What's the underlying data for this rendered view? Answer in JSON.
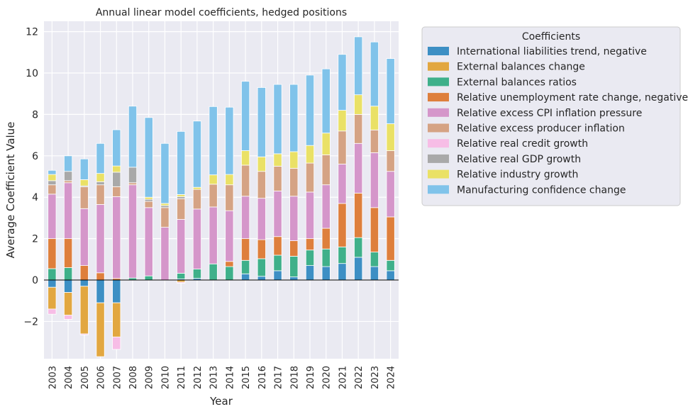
{
  "chart_data": {
    "type": "bar",
    "stacked": true,
    "title": "Annual linear model coefficients, hedged positions",
    "xlabel": "Year",
    "ylabel": "Average Coefficient Value",
    "ylim": [
      -3.8,
      12.5
    ],
    "yticks": [
      -2,
      0,
      2,
      4,
      6,
      8,
      10,
      12
    ],
    "grid": true,
    "legend_title": "Coefficients",
    "legend_position": "outside right",
    "categories": [
      "2003",
      "2004",
      "2005",
      "2006",
      "2007",
      "2008",
      "2009",
      "2010",
      "2011",
      "2012",
      "2013",
      "2014",
      "2015",
      "2016",
      "2017",
      "2018",
      "2019",
      "2020",
      "2021",
      "2022",
      "2023",
      "2024"
    ],
    "series": [
      {
        "name": "International liabilities trend, negative",
        "color": "#3d8fc4",
        "values": [
          -0.35,
          -0.6,
          -0.3,
          -1.1,
          -1.1,
          0,
          0,
          0,
          0.05,
          0.08,
          0,
          0,
          0.3,
          0.18,
          0.45,
          0.15,
          0.7,
          0.65,
          0.8,
          1.1,
          0.65,
          0.45
        ]
      },
      {
        "name": "External balances change",
        "color": "#e2a740",
        "values": [
          -1.05,
          -1.1,
          -2.3,
          -2.6,
          -1.65,
          0,
          0,
          0,
          -0.1,
          0,
          0,
          0,
          0,
          0,
          0,
          0,
          0,
          0,
          0,
          0,
          0,
          0
        ]
      },
      {
        "name": "External balances ratios",
        "color": "#3fb08a",
        "values": [
          0.55,
          0.6,
          0,
          0,
          0,
          0.1,
          0.2,
          0,
          0.28,
          0.45,
          0.78,
          0.65,
          0.65,
          0.85,
          0.75,
          1.0,
          0.75,
          0.85,
          0.8,
          0.95,
          0.7,
          0.5
        ]
      },
      {
        "name": "Relative unemployment rate change, negative",
        "color": "#de7f3c",
        "values": [
          1.45,
          1.4,
          0.7,
          0.35,
          0.08,
          0,
          0,
          0,
          0,
          0,
          0,
          0.25,
          1.05,
          0.92,
          0.9,
          0.75,
          0.55,
          1.0,
          2.1,
          2.15,
          2.15,
          2.1
        ]
      },
      {
        "name": "Relative excess CPI inflation pressure",
        "color": "#d596ca",
        "values": [
          2.15,
          2.7,
          2.75,
          3.3,
          3.95,
          4.5,
          3.3,
          2.55,
          2.6,
          2.9,
          2.75,
          2.45,
          2.05,
          2.0,
          2.2,
          2.15,
          2.25,
          2.1,
          1.9,
          2.4,
          2.65,
          2.2
        ]
      },
      {
        "name": "Relative excess producer inflation",
        "color": "#d5a384",
        "values": [
          0.45,
          0.1,
          1.05,
          0.95,
          0.48,
          0.1,
          0.3,
          0.95,
          1.0,
          0.95,
          1.1,
          1.25,
          1.5,
          1.3,
          1.2,
          1.35,
          1.4,
          1.45,
          1.6,
          1.4,
          1.1,
          1.0
        ]
      },
      {
        "name": "Relative real credit growth",
        "color": "#f7bde6",
        "values": [
          -0.25,
          -0.2,
          -0.05,
          0,
          -0.6,
          0,
          0,
          0,
          -0.05,
          0,
          0,
          0,
          0,
          0,
          0,
          0,
          0,
          0,
          0,
          0,
          0,
          0
        ]
      },
      {
        "name": "Relative real GDP growth",
        "color": "#a9a9a9",
        "values": [
          0.2,
          0.45,
          0.05,
          0.15,
          0.7,
          0.75,
          0.1,
          0.1,
          0.1,
          0,
          0,
          0,
          0,
          0,
          0,
          0,
          0,
          0,
          0,
          0,
          0,
          0
        ]
      },
      {
        "name": "Relative industry growth",
        "color": "#eae166",
        "values": [
          0.3,
          0,
          0.3,
          0.4,
          0.3,
          0,
          0.1,
          0.1,
          0.1,
          0.1,
          0.45,
          0.5,
          0.7,
          0.7,
          0.6,
          0.8,
          0.85,
          1.05,
          1.0,
          0.95,
          1.15,
          1.3
        ]
      },
      {
        "name": "Manufacturing confidence change",
        "color": "#80c3ea",
        "values": [
          0.2,
          0.75,
          1.0,
          1.45,
          1.75,
          2.95,
          3.85,
          2.9,
          3.05,
          3.2,
          3.3,
          3.25,
          3.35,
          3.35,
          3.35,
          3.25,
          3.4,
          3.1,
          2.7,
          2.8,
          3.1,
          3.15
        ]
      }
    ]
  }
}
